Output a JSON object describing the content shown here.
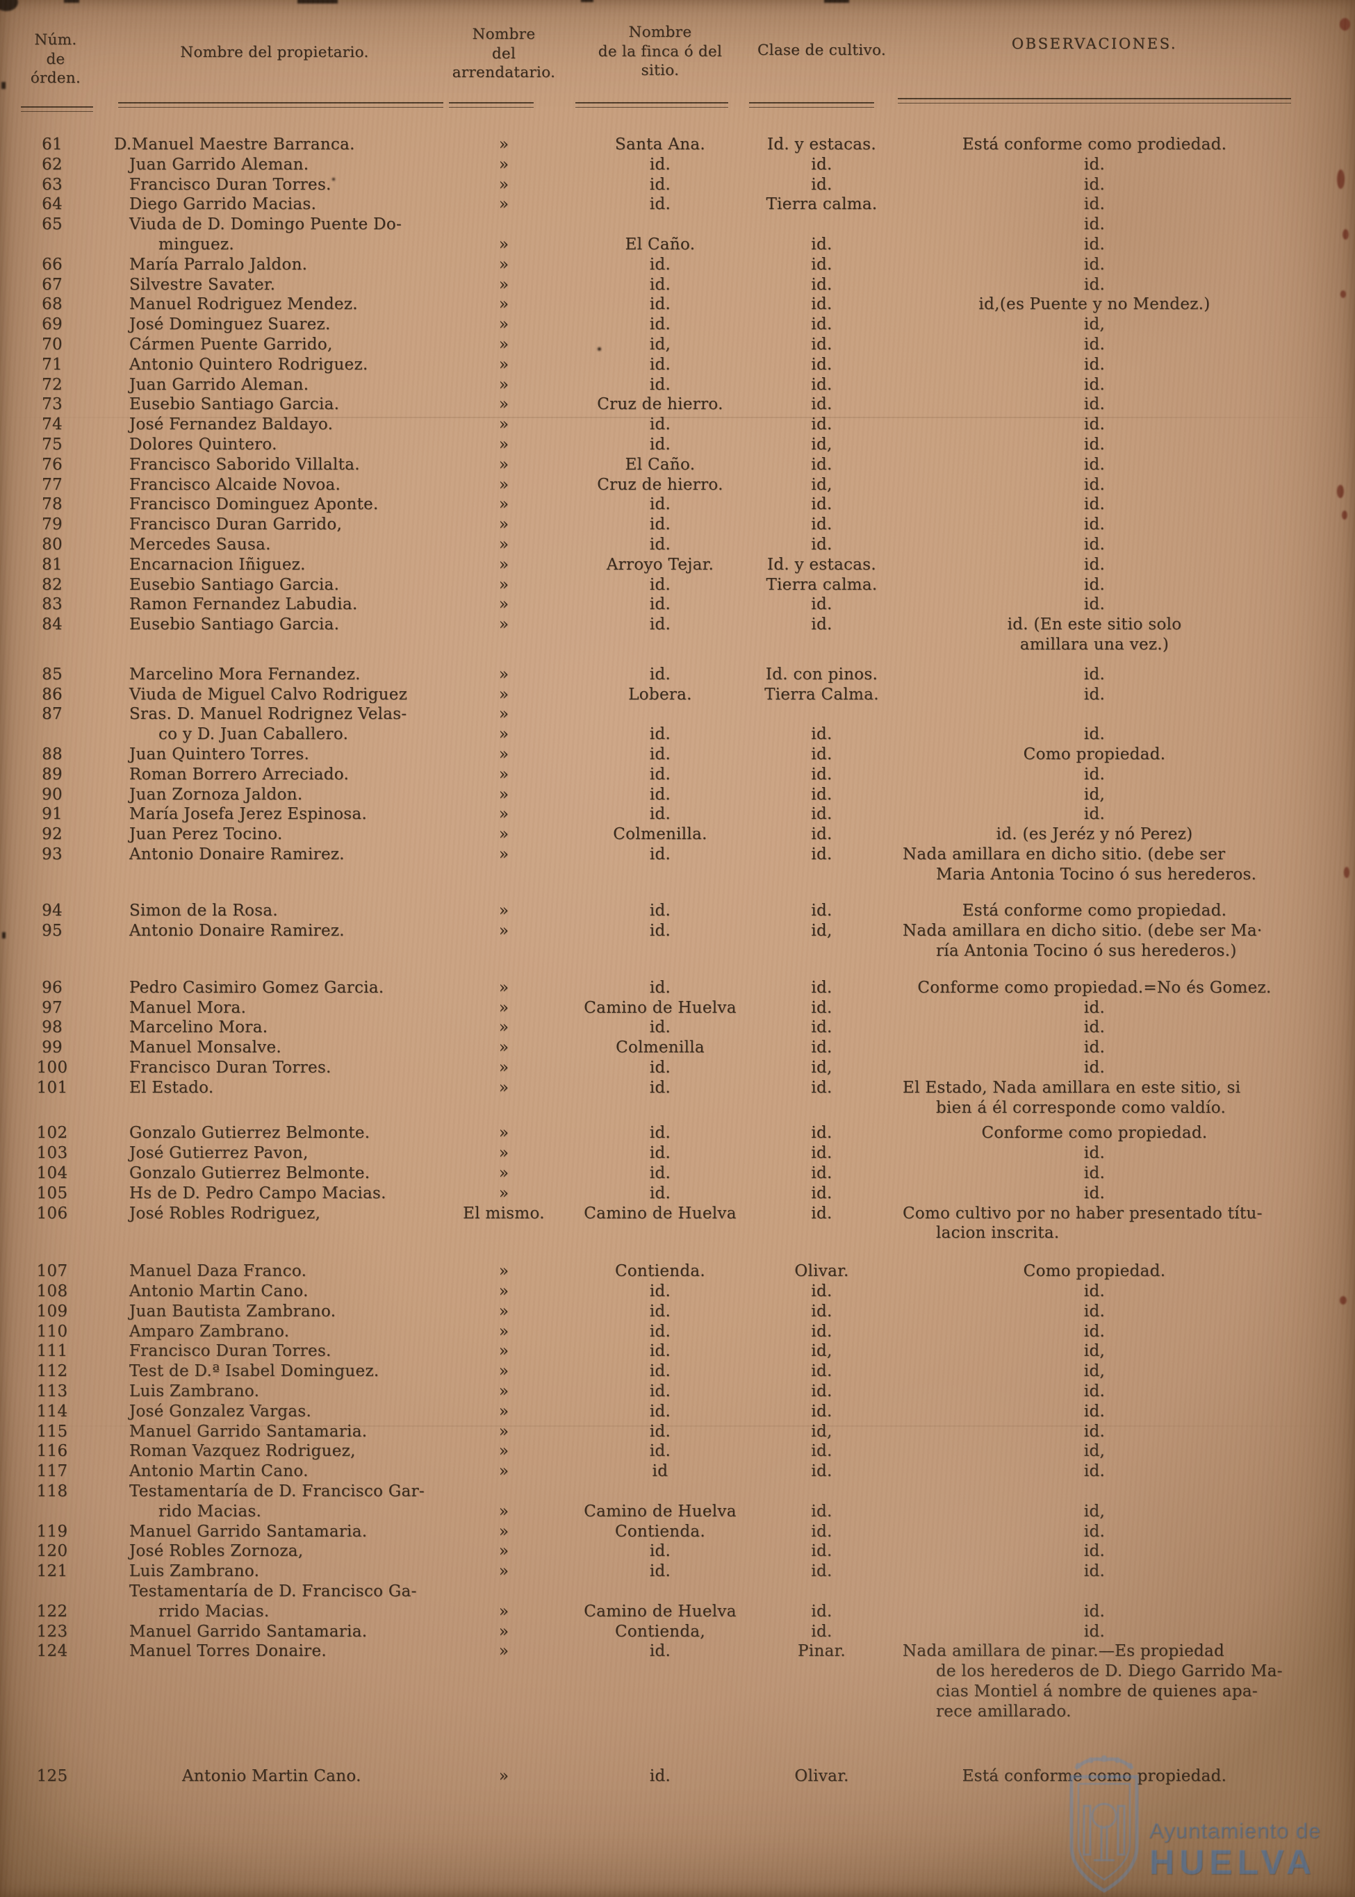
{
  "document_kind": "registro impreso de propietarios y fincas",
  "header": {
    "num": [
      "Núm.",
      "de",
      "órden."
    ],
    "propietario": "Nombre del propietario.",
    "arrendatario": [
      "Nombre",
      "del",
      "arrendatario."
    ],
    "finca": [
      "Nombre",
      "de la finca ó del",
      "sitio."
    ],
    "cultivo": "Clase de cultivo.",
    "observaciones": "OBSERVACIONES."
  },
  "colors": {
    "paper": "#c79f7e",
    "ink": "#38291c",
    "stamp_blue": "#6086b5",
    "speck_red": "#6f3323"
  },
  "watermark": {
    "line1": "Ayuntamiento de",
    "line2": "HUELVA"
  },
  "table": {
    "rows": [
      {
        "n": "61",
        "po": 1,
        "p": [
          "D.Manuel Maestre Barranca."
        ],
        "s": "Santa Ana.",
        "c": "Id. y estacas.",
        "o": [
          "Está conforme como prodiedad."
        ]
      },
      {
        "n": "62",
        "p": [
          "Juan Garrido Aleman."
        ],
        "s": "id.",
        "c": "id.",
        "o": [
          "id."
        ]
      },
      {
        "n": "63",
        "p": [
          "Francisco Duran Torres."
        ],
        "s": "id.",
        "c": "id.",
        "o": [
          "id."
        ]
      },
      {
        "n": "64",
        "p": [
          "Diego Garrido Macias."
        ],
        "s": "id.",
        "c": "Tierra calma.",
        "o": [
          "id."
        ]
      },
      {
        "n": "65",
        "p": [
          "Viuda de D. Domingo Puente Do-",
          "minguez."
        ],
        "a": [
          "",
          "»"
        ],
        "s": "El  Caño.",
        "c": "id.",
        "o": [
          "id."
        ],
        "o1": "id."
      },
      {
        "n": "66",
        "p": [
          "María Parralo Jaldon."
        ],
        "s": "id.",
        "c": "id.",
        "o": [
          "id."
        ]
      },
      {
        "n": "67",
        "p": [
          "Silvestre Savater."
        ],
        "s": "id.",
        "c": "id.",
        "o": [
          "id."
        ]
      },
      {
        "n": "68",
        "p": [
          "Manuel Rodriguez Mendez."
        ],
        "s": "id.",
        "c": "id.",
        "o": [
          "id,(es Puente y no Mendez.)"
        ]
      },
      {
        "n": "69",
        "p": [
          "José Dominguez Suarez."
        ],
        "s": "id.",
        "c": "id.",
        "o": [
          "id,"
        ]
      },
      {
        "n": "70",
        "p": [
          "Cármen Puente Garrido,"
        ],
        "s": "id,",
        "c": "id.",
        "o": [
          "id."
        ]
      },
      {
        "n": "71",
        "p": [
          "Antonio Quintero Rodriguez."
        ],
        "s": "id.",
        "c": "id.",
        "o": [
          "id."
        ]
      },
      {
        "n": "72",
        "p": [
          "Juan Garrido Aleman."
        ],
        "s": "id.",
        "c": "id.",
        "o": [
          "id."
        ]
      },
      {
        "n": "73",
        "p": [
          "Eusebio Santiago Garcia."
        ],
        "s": "Cruz de hierro.",
        "c": "id.",
        "o": [
          "id."
        ]
      },
      {
        "n": "74",
        "p": [
          "José Fernandez Baldayo."
        ],
        "s": "id.",
        "c": "id.",
        "o": [
          "id."
        ]
      },
      {
        "n": "75",
        "p": [
          "Dolores Quintero."
        ],
        "s": "id.",
        "c": "id,",
        "o": [
          "id."
        ]
      },
      {
        "n": "76",
        "p": [
          "Francisco Saborido Villalta."
        ],
        "s": "El  Caño.",
        "c": "id.",
        "o": [
          "id."
        ]
      },
      {
        "n": "77",
        "p": [
          "Francisco Alcaide Novoa."
        ],
        "s": "Cruz de hierro.",
        "c": "id,",
        "o": [
          "id."
        ]
      },
      {
        "n": "78",
        "p": [
          "Francisco Dominguez Aponte."
        ],
        "s": "id.",
        "c": "id.",
        "o": [
          "id."
        ]
      },
      {
        "n": "79",
        "p": [
          "Francisco Duran Garrido,"
        ],
        "s": "id.",
        "c": "id.",
        "o": [
          "id."
        ]
      },
      {
        "n": "80",
        "p": [
          "Mercedes Sausa."
        ],
        "s": "id.",
        "c": "id.",
        "o": [
          "id."
        ]
      },
      {
        "n": "81",
        "p": [
          "Encarnacion Iñiguez."
        ],
        "s": "Arroyo Tejar.",
        "c": "Id. y estacas.",
        "o": [
          "id."
        ]
      },
      {
        "n": "82",
        "p": [
          "Eusebio Santiago Garcia."
        ],
        "s": "id.",
        "c": "Tierra calma.",
        "o": [
          "id."
        ]
      },
      {
        "n": "83",
        "p": [
          "Ramon Fernandez Labudia."
        ],
        "s": "id.",
        "c": "id.",
        "o": [
          "id."
        ]
      },
      {
        "n": "84",
        "p": [
          "Eusebio Santiago Garcia."
        ],
        "s": "id.",
        "c": "id.",
        "o": [
          "id. (En este sitio solo",
          "amillara una vez.)"
        ],
        "oc": 1
      },
      {
        "n": "85",
        "g": 14,
        "p": [
          "Marcelino Mora Fernandez."
        ],
        "s": "id.",
        "c": "Id. con pinos.",
        "o": [
          "id."
        ]
      },
      {
        "n": "86",
        "p": [
          "Viuda de Miguel Calvo Rodriguez"
        ],
        "s": "Lobera.",
        "c": "Tierra  Calma.",
        "o": [
          "id."
        ]
      },
      {
        "n": "87",
        "p": [
          "Sras. D. Manuel Rodrignez Velas-",
          "co y D. Juan Caballero."
        ],
        "a": [
          "»",
          "»"
        ],
        "s": "id.",
        "c": "id.",
        "o": [
          "id."
        ]
      },
      {
        "n": "88",
        "p": [
          "Juan Quintero Torres."
        ],
        "s": "id.",
        "c": "id.",
        "o": [
          "Como propiedad."
        ]
      },
      {
        "n": "89",
        "p": [
          "Roman Borrero Arreciado."
        ],
        "s": "id.",
        "c": "id.",
        "o": [
          "id."
        ]
      },
      {
        "n": "90",
        "p": [
          "Juan Zornoza Jaldon."
        ],
        "s": "id.",
        "c": "id.",
        "o": [
          "id,"
        ]
      },
      {
        "n": "91",
        "p": [
          "María Josefa Jerez Espinosa."
        ],
        "s": "id.",
        "c": "id.",
        "o": [
          "id."
        ]
      },
      {
        "n": "92",
        "p": [
          "Juan Perez Tocino."
        ],
        "s": "Colmenilla.",
        "c": "id.",
        "o": [
          "id. (es Jeréz y nó Perez)"
        ]
      },
      {
        "n": "93",
        "p": [
          "Antonio Donaire Ramirez."
        ],
        "s": "id.",
        "c": "id.",
        "o": [
          "Nada amillara en dicho  sitio. (debe  ser",
          "Maria  Antonia  Tocino ó sus  herederos."
        ]
      },
      {
        "n": "94",
        "g": 24,
        "p": [
          "Simon de la Rosa."
        ],
        "s": "id.",
        "c": "id.",
        "o": [
          "Está conforme como propiedad."
        ]
      },
      {
        "n": "95",
        "p": [
          "Antonio Donaire Ramirez."
        ],
        "s": "id.",
        "c": "id,",
        "o": [
          "Nada amillara en dicho sitio. (debe ser Ma·",
          "ría Antonia Tocino ó  sus herederos.)"
        ]
      },
      {
        "n": "96",
        "g": 24,
        "p": [
          "Pedro Casimiro Gomez Garcia."
        ],
        "s": "id.",
        "c": "id.",
        "o": [
          "Conforme como propiedad.=No és Gomez."
        ]
      },
      {
        "n": "97",
        "p": [
          "Manuel Mora."
        ],
        "s": "Camino de Huelva",
        "c": "id.",
        "o": [
          "id."
        ]
      },
      {
        "n": "98",
        "p": [
          "Marcelino Mora."
        ],
        "s": "id.",
        "c": "id.",
        "o": [
          "id."
        ]
      },
      {
        "n": "99",
        "p": [
          "Manuel Monsalve."
        ],
        "s": "Colmenilla",
        "c": "id.",
        "o": [
          "id."
        ]
      },
      {
        "n": "100",
        "p": [
          "Francisco Duran Torres."
        ],
        "s": "id.",
        "c": "id,",
        "o": [
          "id."
        ]
      },
      {
        "n": "101",
        "p": [
          "El Estado."
        ],
        "s": "id.",
        "c": "id.",
        "o": [
          "El Estado, Nada amillara  en este sitio, si",
          "bien á él corresponde como  valdío."
        ]
      },
      {
        "n": "102",
        "g": 8,
        "p": [
          "Gonzalo Gutierrez Belmonte."
        ],
        "s": "id.",
        "c": "id.",
        "o": [
          "Conforme como propiedad."
        ]
      },
      {
        "n": "103",
        "p": [
          "José Gutierrez Pavon,"
        ],
        "s": "id.",
        "c": "id.",
        "o": [
          "id."
        ]
      },
      {
        "n": "104",
        "p": [
          "Gonzalo Gutierrez Belmonte."
        ],
        "s": "id.",
        "c": "id.",
        "o": [
          "id."
        ]
      },
      {
        "n": "105",
        "p": [
          "Hs  de D. Pedro Campo Macias."
        ],
        "s": "id.",
        "c": "id.",
        "o": [
          "id."
        ]
      },
      {
        "n": "106",
        "p": [
          "José Robles Rodriguez,"
        ],
        "a": [
          "El mismo."
        ],
        "s": "Camino de Huelva",
        "c": "id.",
        "o": [
          "Como cultivo por no haber presentado títu-",
          "lacion inscrita."
        ]
      },
      {
        "n": "107",
        "g": 26,
        "p": [
          "Manuel Daza Franco."
        ],
        "s": "Contienda.",
        "c": "Olivar.",
        "o": [
          "Como propiedad."
        ]
      },
      {
        "n": "108",
        "p": [
          "Antonio Martin Cano."
        ],
        "s": "id.",
        "c": "id.",
        "o": [
          "id."
        ]
      },
      {
        "n": "109",
        "p": [
          "Juan Bautista Zambrano."
        ],
        "s": "id.",
        "c": "id.",
        "o": [
          "id."
        ]
      },
      {
        "n": "110",
        "p": [
          "Amparo Zambrano."
        ],
        "s": "id.",
        "c": "id.",
        "o": [
          "id."
        ]
      },
      {
        "n": "111",
        "p": [
          "Francisco Duran Torres."
        ],
        "s": "id.",
        "c": "id,",
        "o": [
          "id,"
        ]
      },
      {
        "n": "112",
        "p": [
          "Test  de D.ª Isabel Dominguez."
        ],
        "s": "id.",
        "c": "id.",
        "o": [
          "id,"
        ]
      },
      {
        "n": "113",
        "p": [
          "Luis Zambrano."
        ],
        "s": "id.",
        "c": "id.",
        "o": [
          "id."
        ]
      },
      {
        "n": "114",
        "p": [
          "José Gonzalez Vargas."
        ],
        "s": "id.",
        "c": "id.",
        "o": [
          "id."
        ]
      },
      {
        "n": "115",
        "p": [
          "Manuel Garrido Santamaria."
        ],
        "s": "id.",
        "c": "id,",
        "o": [
          "id."
        ]
      },
      {
        "n": "116",
        "p": [
          "Roman Vazquez Rodriguez,"
        ],
        "s": "id.",
        "c": "id.",
        "o": [
          "id,"
        ]
      },
      {
        "n": "117",
        "p": [
          "Antonio Martin Cano."
        ],
        "s": "id",
        "c": "id.",
        "o": [
          "id."
        ]
      },
      {
        "n": "118",
        "p": [
          "Testamentaría de D. Francisco Gar-",
          "rido Macias."
        ],
        "a": [
          "",
          "»"
        ],
        "s": "Camino de Huelva",
        "c": "id.",
        "o": [
          "id,"
        ]
      },
      {
        "n": "119",
        "p": [
          "Manuel Garrido Santamaria."
        ],
        "s": "Contienda.",
        "c": "id.",
        "o": [
          "id."
        ]
      },
      {
        "n": "120",
        "p": [
          "José Robles Zornoza,"
        ],
        "s": "id.",
        "c": "id.",
        "o": [
          "id."
        ]
      },
      {
        "n": "121",
        "p": [
          "Luis Zambrano."
        ],
        "s": "id.",
        "c": "id.",
        "o": [
          "id."
        ]
      },
      {
        "n": "122",
        "nl": 1,
        "p": [
          "Testamentaría de D. Francisco Ga-",
          "rrido Macias."
        ],
        "a": [
          "",
          "»"
        ],
        "s": "Camino de Huelva",
        "c": "id.",
        "o": [
          "id."
        ]
      },
      {
        "n": "123",
        "p": [
          "Manuel Garrido Santamaria."
        ],
        "s": "Contienda,",
        "c": "id.",
        "o": [
          "id."
        ]
      },
      {
        "n": "124",
        "p": [
          "Manuel Torres Donaire."
        ],
        "s": "id.",
        "c": "Pinar.",
        "o": [
          "Nada  amillara  de  pinar.—Es  propiedad",
          "de los herederos de D. Diego Garrido Ma-",
          "cias Montiel á  nombre de quienes apa-",
          "rece amillarado."
        ]
      },
      {
        "n": "125",
        "g": 64,
        "pi": 1,
        "p": [
          "Antonio Martin Cano."
        ],
        "s": "id.",
        "c": "Olivar.",
        "o": [
          "Está conforme como propiedad."
        ]
      }
    ]
  }
}
